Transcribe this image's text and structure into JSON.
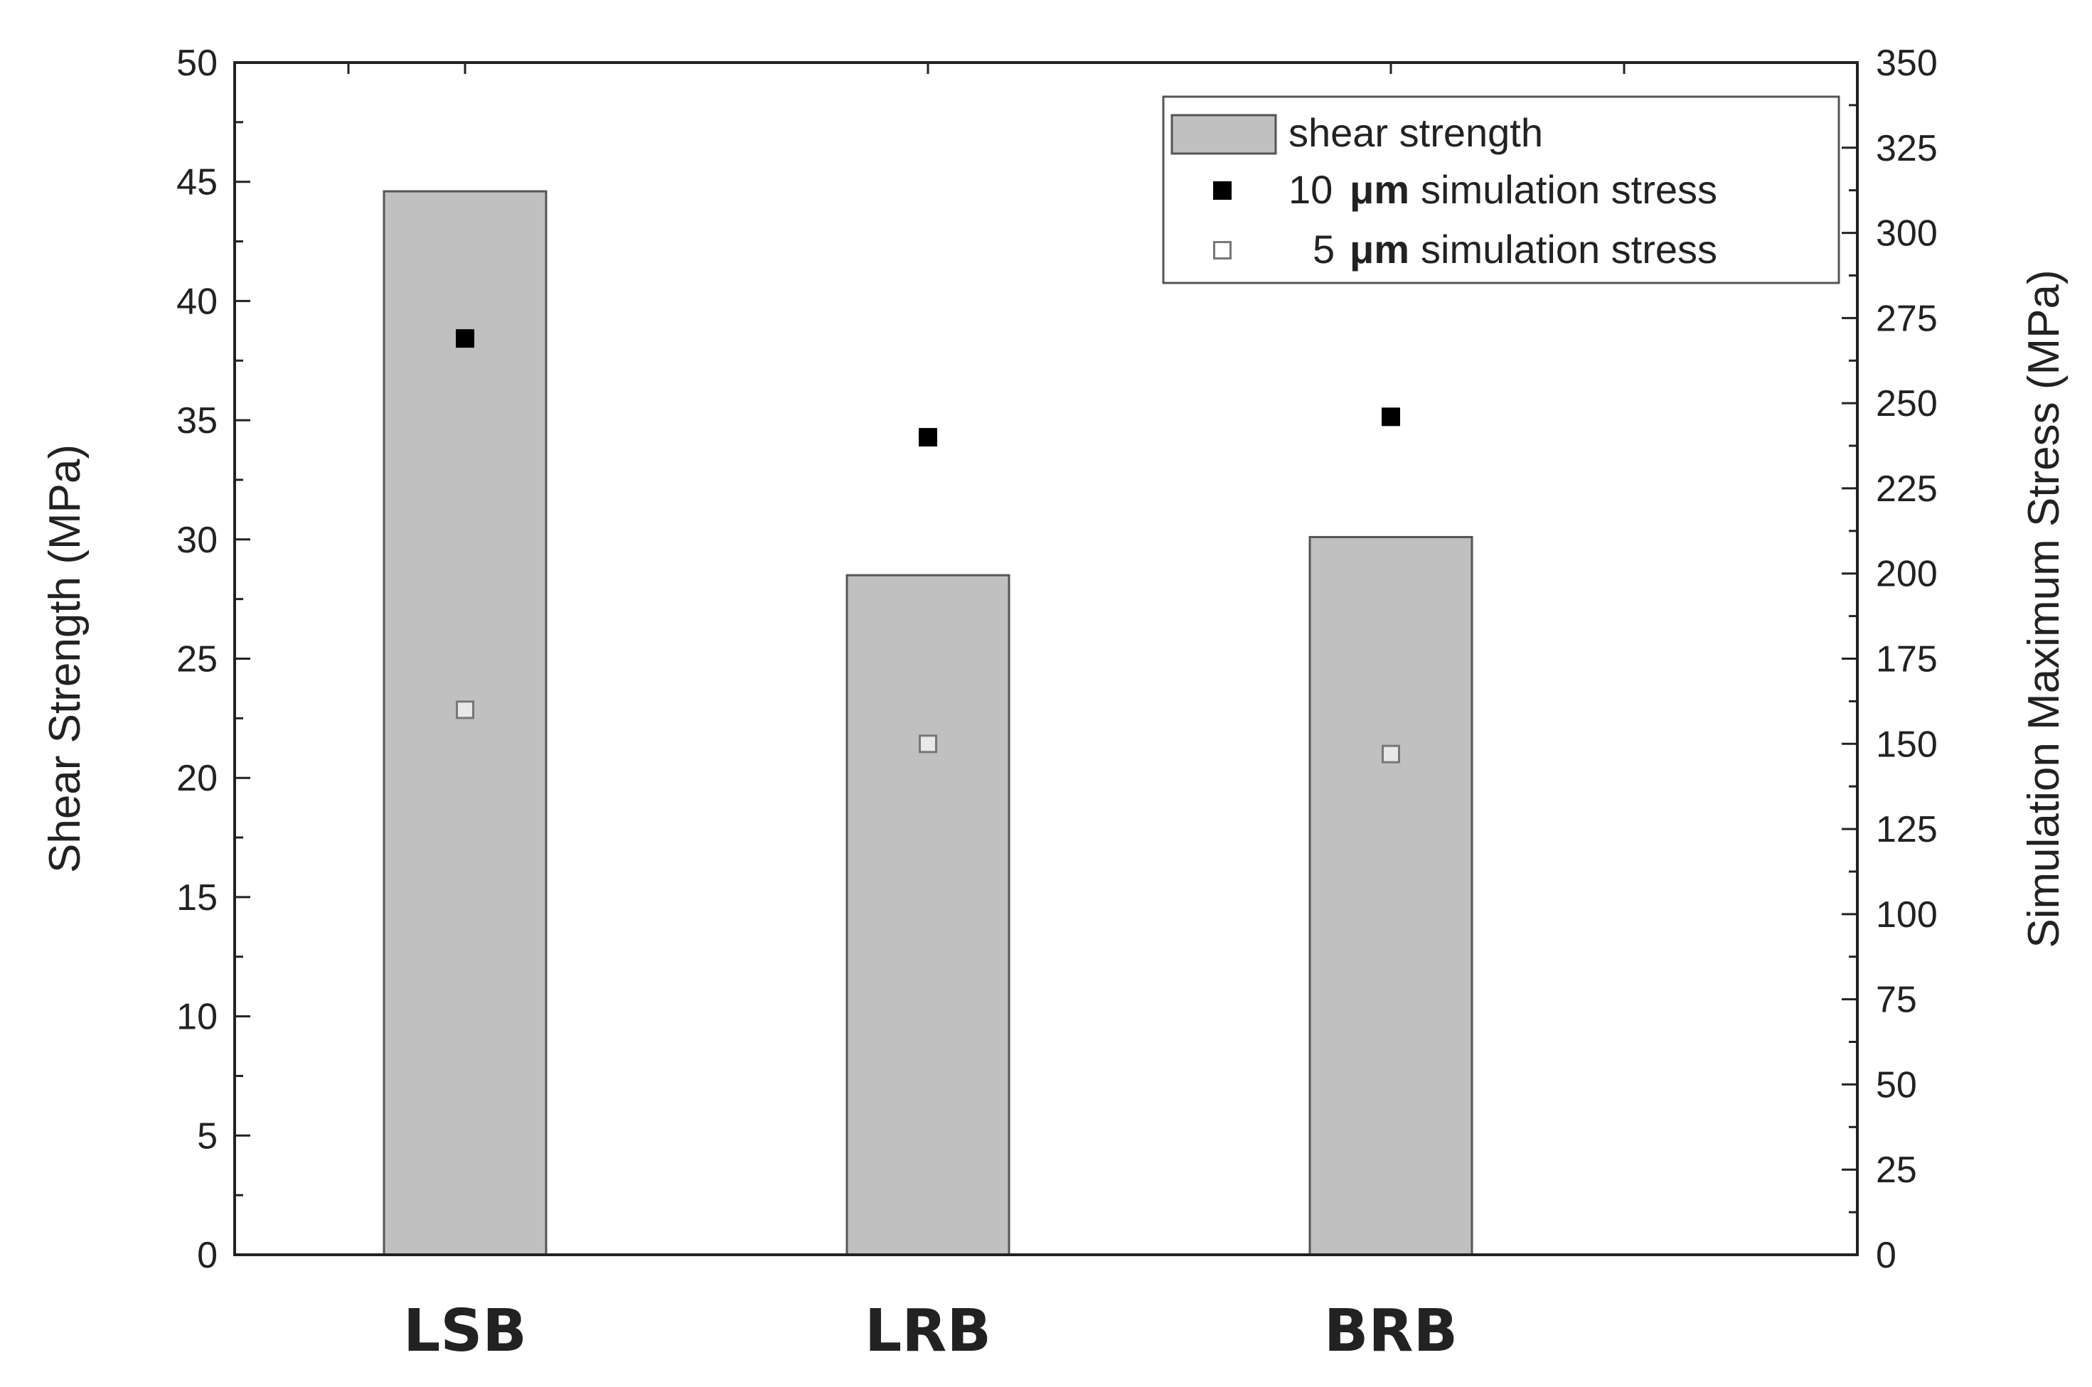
{
  "chart_data": {
    "type": "bar",
    "categories": [
      "LSB",
      "LRB",
      "BRB"
    ],
    "series": [
      {
        "name": "shear strength",
        "kind": "bar",
        "axis": "left",
        "values": [
          44.6,
          28.5,
          30.1
        ],
        "color": "#c0c0c0"
      },
      {
        "name": "10 μm simulation stress",
        "kind": "scatter",
        "axis": "right",
        "marker": "filled-square",
        "values": [
          269,
          240,
          246
        ],
        "color": "#000000"
      },
      {
        "name": "5 μm simulation stress",
        "kind": "scatter",
        "axis": "right",
        "marker": "hollow-square",
        "values": [
          160,
          150,
          147
        ],
        "color": "#777777"
      }
    ],
    "ylabel": "Shear Strength (MPa)",
    "ylim": [
      0,
      50
    ],
    "yticks": [
      0,
      5,
      10,
      15,
      20,
      25,
      30,
      35,
      40,
      45,
      50
    ],
    "y2label": "Simulation Maximum Stress (MPa)",
    "y2lim": [
      0,
      350
    ],
    "y2ticks": [
      0,
      25,
      50,
      75,
      100,
      125,
      150,
      175,
      200,
      225,
      250,
      275,
      300,
      325,
      350
    ],
    "legend": {
      "position": "top-right",
      "items": [
        {
          "prefix": "",
          "unit": "",
          "text": "shear strength"
        },
        {
          "prefix": "10",
          "unit": "μm",
          "text": "simulation stress"
        },
        {
          "prefix": "5",
          "unit": "μm",
          "text": "simulation stress"
        }
      ]
    },
    "grid": false
  }
}
